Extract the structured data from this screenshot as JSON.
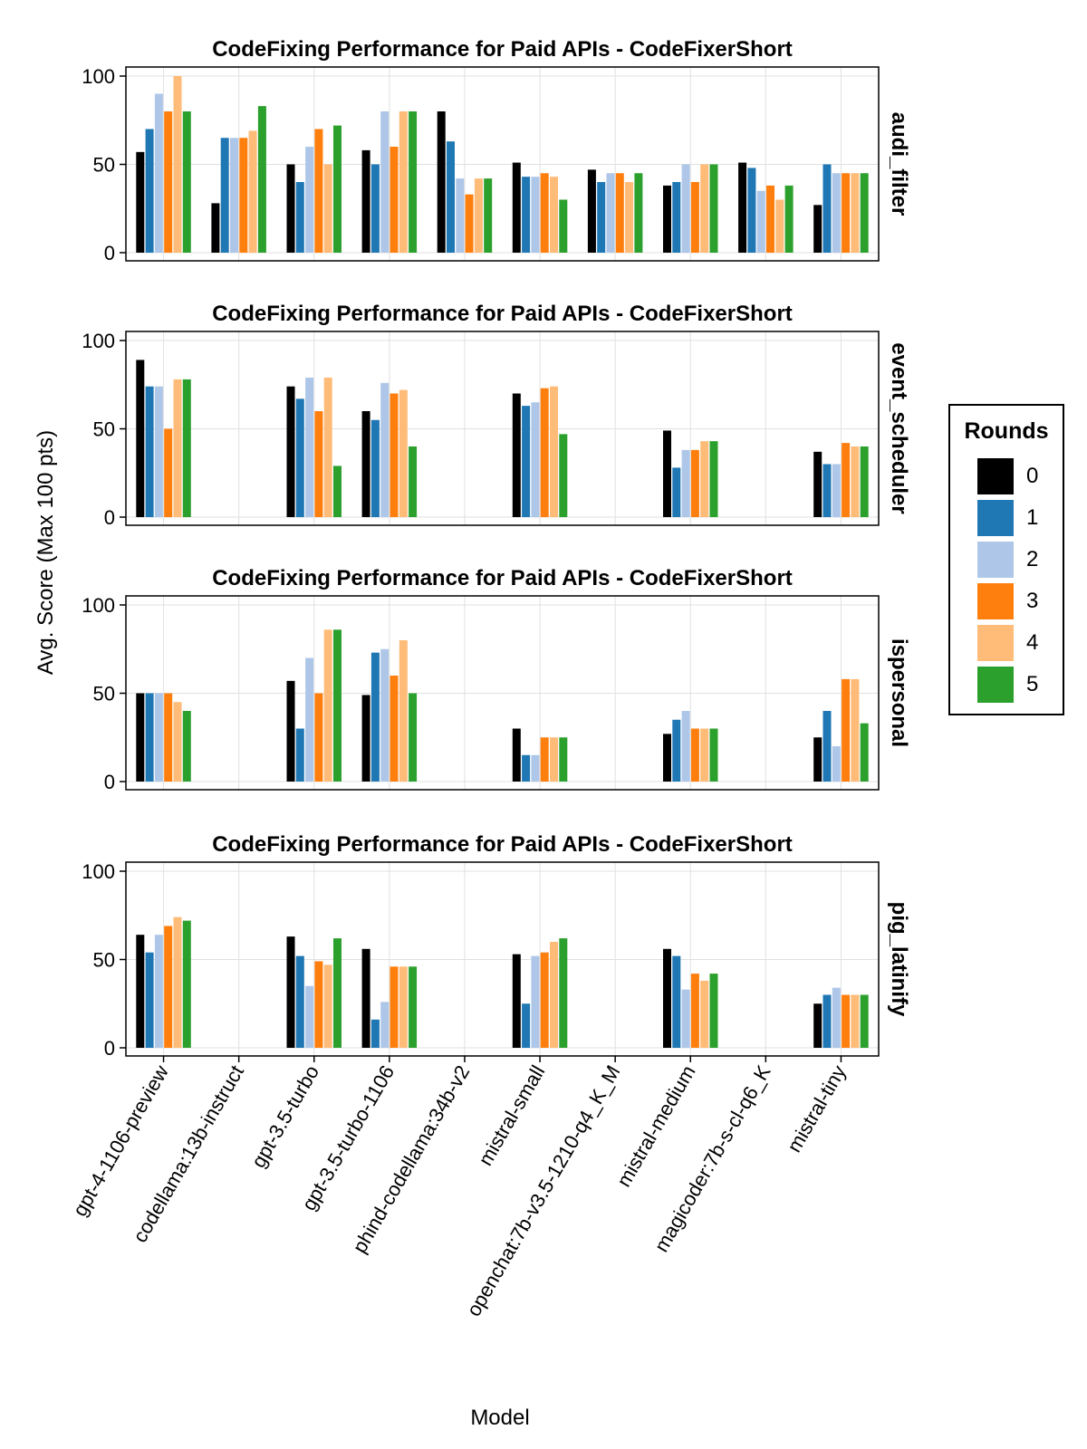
{
  "colors": {
    "rounds": [
      "#000000",
      "#1f77b4",
      "#aec7e8",
      "#ff7f0e",
      "#ffbb78",
      "#2ca02c"
    ],
    "grid": "#e0e0e0"
  },
  "legend": {
    "title": "Rounds",
    "items": [
      "0",
      "1",
      "2",
      "3",
      "4",
      "5"
    ]
  },
  "chart_data": {
    "type": "bar",
    "subtype": "grouped, faceted (4 panels)",
    "xlabel": "Model",
    "ylabel": "Avg. Score (Max 100 pts)",
    "ylim": [
      0,
      100
    ],
    "yticks": [
      0,
      50,
      100
    ],
    "grid": true,
    "legend_position": "right",
    "categories": [
      "gpt-4-1106-preview",
      "codellama:13b-instruct",
      "gpt-3.5-turbo",
      "gpt-3.5-turbo-1106",
      "phind-codellama:34b-v2",
      "mistral-small",
      "openchat:7b-v3.5-1210-q4_K_M",
      "mistral-medium",
      "magicoder:7b-s-cl-q6_K",
      "mistral-tiny"
    ],
    "series_names": [
      "0",
      "1",
      "2",
      "3",
      "4",
      "5"
    ],
    "panels": [
      {
        "title": "CodeFixing Performance for Paid APIs - CodeFixerShort",
        "facet": "audi_filter",
        "values": [
          [
            57,
            70,
            90,
            80,
            100,
            80
          ],
          [
            28,
            65,
            65,
            65,
            69,
            83
          ],
          [
            50,
            40,
            60,
            70,
            50,
            72
          ],
          [
            58,
            50,
            80,
            60,
            80,
            80
          ],
          [
            80,
            63,
            42,
            33,
            42,
            42
          ],
          [
            51,
            43,
            43,
            45,
            43,
            30
          ],
          [
            47,
            40,
            45,
            45,
            40,
            45
          ],
          [
            38,
            40,
            50,
            40,
            50,
            50
          ],
          [
            51,
            48,
            35,
            38,
            30,
            38
          ],
          [
            27,
            50,
            45,
            45,
            45,
            45
          ]
        ]
      },
      {
        "title": "CodeFixing Performance for Paid APIs - CodeFixerShort",
        "facet": "event_scheduler",
        "values": [
          [
            89,
            74,
            74,
            50,
            78,
            78
          ],
          null,
          [
            74,
            67,
            79,
            60,
            79,
            29
          ],
          [
            60,
            55,
            76,
            70,
            72,
            40
          ],
          null,
          [
            70,
            63,
            65,
            73,
            74,
            47
          ],
          null,
          [
            49,
            28,
            38,
            38,
            43,
            43
          ],
          null,
          [
            37,
            30,
            30,
            42,
            40,
            40
          ]
        ]
      },
      {
        "title": "CodeFixing Performance for Paid APIs - CodeFixerShort",
        "facet": "ispersonal",
        "values": [
          [
            50,
            50,
            50,
            50,
            45,
            40
          ],
          null,
          [
            57,
            30,
            70,
            50,
            86,
            86
          ],
          [
            49,
            73,
            75,
            60,
            80,
            50
          ],
          null,
          [
            30,
            15,
            15,
            25,
            25,
            25
          ],
          null,
          [
            27,
            35,
            40,
            30,
            30,
            30
          ],
          null,
          [
            25,
            40,
            20,
            58,
            58,
            33
          ]
        ]
      },
      {
        "title": "CodeFixing Performance for Paid APIs - CodeFixerShort",
        "facet": "pig_latinify",
        "values": [
          [
            64,
            54,
            64,
            69,
            74,
            72
          ],
          null,
          [
            63,
            52,
            35,
            49,
            47,
            62
          ],
          [
            56,
            16,
            26,
            46,
            46,
            46
          ],
          null,
          [
            53,
            25,
            52,
            54,
            60,
            62
          ],
          null,
          [
            56,
            52,
            33,
            42,
            38,
            42
          ],
          null,
          [
            25,
            30,
            34,
            30,
            30,
            30
          ]
        ]
      }
    ]
  }
}
